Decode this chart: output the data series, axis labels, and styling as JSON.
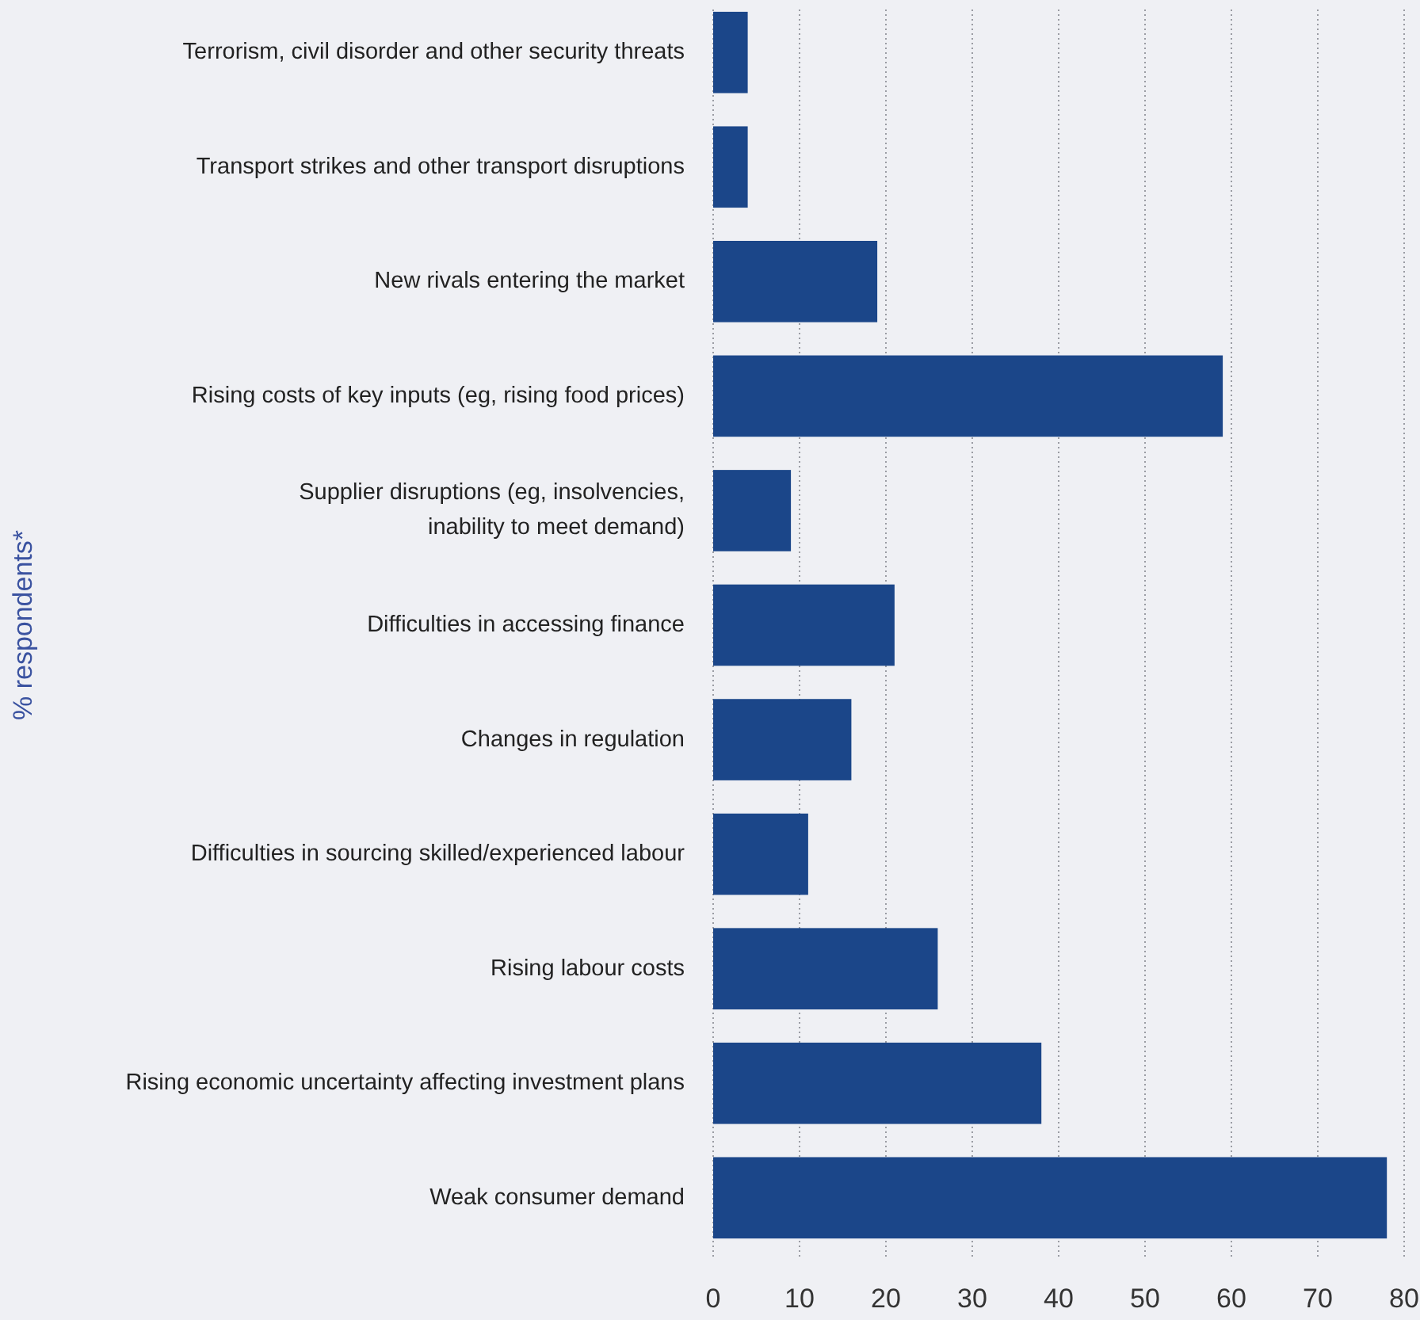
{
  "chart_data": {
    "type": "bar",
    "orientation": "horizontal",
    "ylabel": "% respondents*",
    "categories": [
      "Terrorism, civil disorder and other security threats",
      "Transport strikes and other transport disruptions",
      "New rivals entering the market",
      "Rising costs of key inputs (eg, rising food prices)",
      "Supplier disruptions (eg, insolvencies, inability to meet demand)",
      "Difficulties in accessing finance",
      "Changes in regulation",
      "Difficulties in sourcing skilled/experienced labour",
      "Rising labour costs",
      "Rising economic uncertainty affecting investment plans",
      "Weak consumer demand"
    ],
    "values": [
      4,
      4,
      19,
      59,
      9,
      21,
      16,
      11,
      26,
      38,
      78
    ],
    "color": "#1b4689",
    "xlim": [
      0,
      80
    ],
    "xticks": [
      0,
      10,
      20,
      30,
      40,
      50,
      60,
      70,
      80
    ],
    "grid": "x"
  }
}
